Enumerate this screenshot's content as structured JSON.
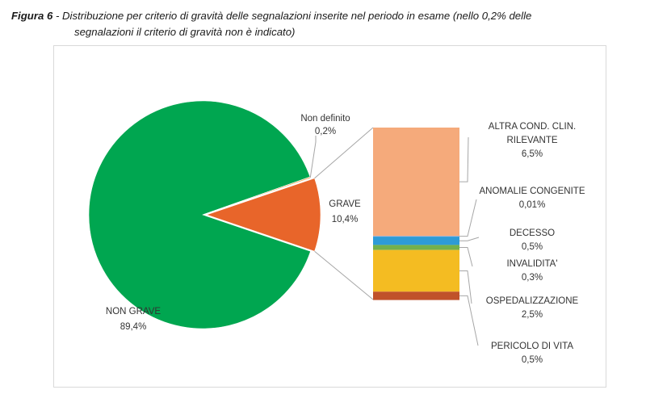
{
  "caption": {
    "figure_label": "Figura 6",
    "separator": " - ",
    "text_line1": "Distribuzione per criterio di gravità delle segnalazioni inserite nel periodo in esame (nello 0,2% delle",
    "text_line2": "segnalazioni il criterio di gravità non è indicato)"
  },
  "chart_data": {
    "type": "pie",
    "variant": "bar-of-pie",
    "title": "",
    "pie": {
      "categories": [
        "NON GRAVE",
        "GRAVE",
        "Non definito"
      ],
      "values": [
        89.4,
        10.4,
        0.2
      ],
      "labels": [
        "89,4%",
        "10,4%",
        "0,2%"
      ],
      "colors": [
        "#00a650",
        "#e8652a",
        "#f0b36e"
      ],
      "exploded": "GRAVE"
    },
    "bar": {
      "parent": "GRAVE",
      "categories": [
        "ALTRA COND. CLIN. RILEVANTE",
        "ANOMALIE CONGENITE",
        "DECESSO",
        "INVALIDITA'",
        "OSPEDALIZZAZIONE",
        "PERICOLO DI VITA"
      ],
      "label_lines": [
        [
          "ALTRA COND. CLIN.",
          "RILEVANTE"
        ],
        [
          "ANOMALIE CONGENITE"
        ],
        [
          "DECESSO"
        ],
        [
          "INVALIDITA'"
        ],
        [
          "OSPEDALIZZAZIONE"
        ],
        [
          "PERICOLO DI VITA"
        ]
      ],
      "values": [
        6.5,
        0.01,
        0.5,
        0.3,
        2.5,
        0.5
      ],
      "labels": [
        "6,5%",
        "0,01%",
        "0,5%",
        "0,3%",
        "2,5%",
        "0,5%"
      ],
      "colors": [
        "#f5aa7b",
        "#8fa9d6",
        "#2e9bd6",
        "#74b04b",
        "#f4bc22",
        "#c0522a"
      ]
    },
    "legend": "none"
  }
}
